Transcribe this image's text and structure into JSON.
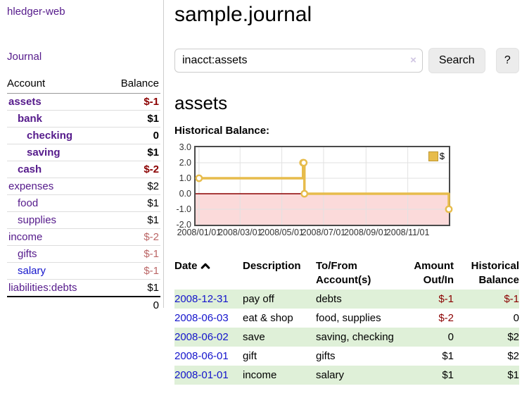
{
  "app": {
    "brand": "hledger-web",
    "nav_journal": "Journal"
  },
  "sidebar": {
    "header": {
      "account": "Account",
      "balance": "Balance"
    },
    "accounts": [
      {
        "name": "assets",
        "balance": "$-1",
        "level": 1,
        "bold": true,
        "neg": "strong",
        "link": "purple"
      },
      {
        "name": "bank",
        "balance": "$1",
        "level": 2,
        "bold": true,
        "neg": "none",
        "link": "purple"
      },
      {
        "name": "checking",
        "balance": "0",
        "level": 3,
        "bold": true,
        "neg": "none",
        "link": "purple"
      },
      {
        "name": "saving",
        "balance": "$1",
        "level": 3,
        "bold": true,
        "neg": "none",
        "link": "purple"
      },
      {
        "name": "cash",
        "balance": "$-2",
        "level": 2,
        "bold": true,
        "neg": "strong",
        "link": "purple"
      },
      {
        "name": "expenses",
        "balance": "$2",
        "level": 1,
        "bold": false,
        "neg": "none",
        "link": "purple"
      },
      {
        "name": "food",
        "balance": "$1",
        "level": 2,
        "bold": false,
        "neg": "none",
        "link": "purple"
      },
      {
        "name": "supplies",
        "balance": "$1",
        "level": 2,
        "bold": false,
        "neg": "none",
        "link": "purple"
      },
      {
        "name": "income",
        "balance": "$-2",
        "level": 1,
        "bold": false,
        "neg": "soft",
        "link": "purple"
      },
      {
        "name": "gifts",
        "balance": "$-1",
        "level": 2,
        "bold": false,
        "neg": "soft",
        "link": "purple"
      },
      {
        "name": "salary",
        "balance": "$-1",
        "level": 2,
        "bold": false,
        "neg": "soft",
        "link": "blue"
      },
      {
        "name": "liabilities:debts",
        "balance": "$1",
        "level": 1,
        "bold": false,
        "neg": "none",
        "link": "purple"
      }
    ],
    "total": "0"
  },
  "header": {
    "title": "sample.journal"
  },
  "search": {
    "value": "inacct:assets",
    "clear_icon": "×",
    "search_button": "Search",
    "help_button": "?"
  },
  "account_page": {
    "title": "assets",
    "chart_label": "Historical Balance:"
  },
  "chart_data": {
    "type": "line",
    "step": true,
    "title": "Historical Balance:",
    "legend": [
      {
        "label": "$",
        "color": "#e7bc4c"
      }
    ],
    "legend_position": "top-right",
    "grid": true,
    "ylim": [
      -2,
      3
    ],
    "xlim_days": [
      -5,
      365
    ],
    "y_ticks": [
      {
        "label": "3.0",
        "value": 3
      },
      {
        "label": "2.0",
        "value": 2
      },
      {
        "label": "1.0",
        "value": 1
      },
      {
        "label": "0.0",
        "value": 0
      },
      {
        "label": "-1.0",
        "value": -1
      },
      {
        "label": "-2.0",
        "value": -2
      }
    ],
    "x_ticks": [
      {
        "label": "2008/01/01",
        "day": 0
      },
      {
        "label": "2008/03/01",
        "day": 60
      },
      {
        "label": "2008/05/01",
        "day": 121
      },
      {
        "label": "2008/07/01",
        "day": 182
      },
      {
        "label": "2008/09/01",
        "day": 244
      },
      {
        "label": "2008/11/01",
        "day": 305
      }
    ],
    "series": [
      {
        "name": "$",
        "color": "#e7bc4c",
        "points": [
          {
            "date": "2008-01-01",
            "day": 0,
            "value": 1
          },
          {
            "date": "2008-06-01",
            "day": 152,
            "value": 2
          },
          {
            "date": "2008-06-02",
            "day": 153,
            "value": 2
          },
          {
            "date": "2008-06-03",
            "day": 154,
            "value": 0
          },
          {
            "date": "2008-12-31",
            "day": 365,
            "value": -1
          }
        ]
      }
    ],
    "negative_region_color": "#fbdada",
    "zero_line_color": "#8b0000",
    "gridline_color": "#e2e2e2"
  },
  "register": {
    "headers": {
      "date": "Date",
      "description": "Description",
      "accounts": "To/From Account(s)",
      "amount": "Amount Out/In",
      "balance": "Historical Balance"
    },
    "sort_icon": "caret-up",
    "rows": [
      {
        "date": "2008-12-31",
        "description": "pay off",
        "accounts": "debts",
        "amount": "$-1",
        "balance": "$-1",
        "stripe": true
      },
      {
        "date": "2008-06-03",
        "description": "eat & shop",
        "accounts": "food, supplies",
        "amount": "$-2",
        "balance": "0",
        "stripe": false
      },
      {
        "date": "2008-06-02",
        "description": "save",
        "accounts": "saving, checking",
        "amount": "0",
        "balance": "$2",
        "stripe": true
      },
      {
        "date": "2008-06-01",
        "description": "gift",
        "accounts": "gifts",
        "amount": "$1",
        "balance": "$2",
        "stripe": false
      },
      {
        "date": "2008-01-01",
        "description": "income",
        "accounts": "salary",
        "amount": "$1",
        "balance": "$1",
        "stripe": true
      }
    ]
  },
  "colors": {
    "link_purple": "#551a8b",
    "link_blue": "#1414cc",
    "negative_strong": "#8b0000",
    "negative_soft": "#bb6666",
    "row_stripe_green": "#dff0d8",
    "chart_line_gold": "#e7bc4c"
  }
}
